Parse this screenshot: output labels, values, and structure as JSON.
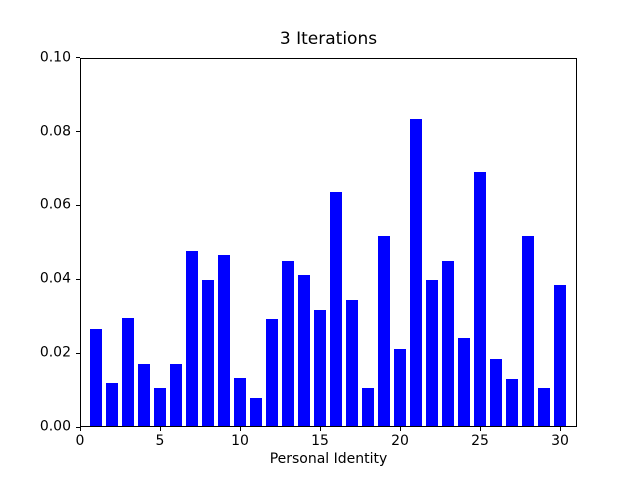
{
  "figure": {
    "background": "#ffffff",
    "frame_color": "#000000"
  },
  "chart_data": {
    "type": "bar",
    "title": "3 Iterations",
    "xlabel": "Personal Identity",
    "ylabel": "",
    "bar_color": "#0000ff",
    "bar_width": 0.8,
    "grid": false,
    "legend": false,
    "xlim": [
      0,
      31.06
    ],
    "ylim": [
      0,
      0.1
    ],
    "x": [
      1,
      2,
      3,
      4,
      5,
      6,
      7,
      8,
      9,
      10,
      11,
      12,
      13,
      14,
      15,
      16,
      17,
      18,
      19,
      20,
      21,
      22,
      23,
      24,
      25,
      26,
      27,
      28,
      29,
      30
    ],
    "values": [
      0.0267,
      0.012,
      0.0295,
      0.0171,
      0.0105,
      0.0171,
      0.0477,
      0.0399,
      0.0465,
      0.0134,
      0.0078,
      0.0293,
      0.0449,
      0.0411,
      0.0318,
      0.0636,
      0.0344,
      0.0105,
      0.0518,
      0.0212,
      0.0835,
      0.0398,
      0.045,
      0.0241,
      0.069,
      0.0185,
      0.0131,
      0.0518,
      0.0106,
      0.0384
    ],
    "xticks": [
      {
        "value": 0,
        "label": "0"
      },
      {
        "value": 5,
        "label": "5"
      },
      {
        "value": 10,
        "label": "10"
      },
      {
        "value": 15,
        "label": "15"
      },
      {
        "value": 20,
        "label": "20"
      },
      {
        "value": 25,
        "label": "25"
      },
      {
        "value": 30,
        "label": "30"
      }
    ],
    "yticks": [
      {
        "value": 0.0,
        "label": "0.00"
      },
      {
        "value": 0.02,
        "label": "0.02"
      },
      {
        "value": 0.04,
        "label": "0.04"
      },
      {
        "value": 0.06,
        "label": "0.06"
      },
      {
        "value": 0.08,
        "label": "0.08"
      },
      {
        "value": 0.1,
        "label": "0.10"
      }
    ]
  }
}
